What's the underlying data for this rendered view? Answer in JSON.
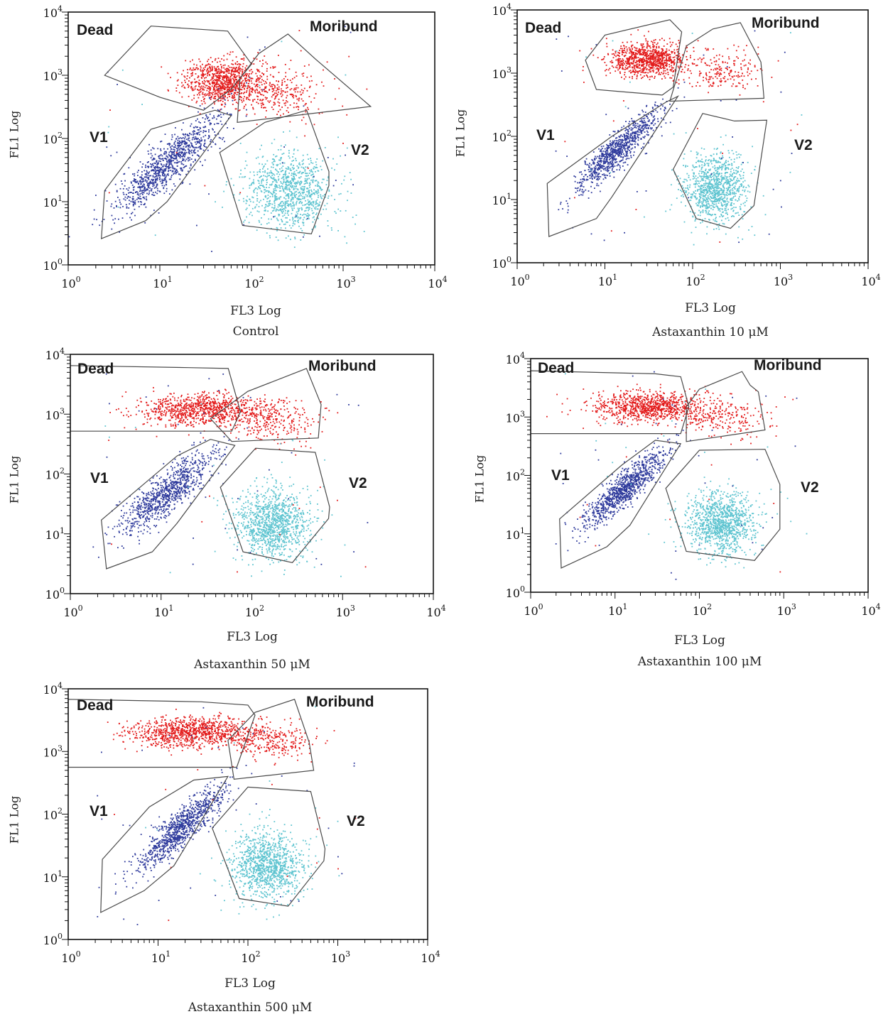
{
  "chart_data": [
    {
      "type": "scatter",
      "title": "Control",
      "xlabel": "FL3 Log",
      "ylabel": "FL1 Log",
      "x_scale": "log",
      "y_scale": "log",
      "xlim": [
        1,
        10000
      ],
      "ylim": [
        1,
        10000
      ],
      "x_ticks": [
        "10^0",
        "10^1",
        "10^2",
        "10^3",
        "10^4"
      ],
      "y_ticks": [
        "10^0",
        "10^1",
        "10^2",
        "10^3",
        "10^4"
      ],
      "gates": [
        {
          "name": "Dead",
          "polygon": [
            [
              2.5,
              1000
            ],
            [
              8,
              6000
            ],
            [
              55,
              5000
            ],
            [
              100,
              1500
            ],
            [
              60,
              600
            ],
            [
              30,
              280
            ],
            [
              10,
              450
            ]
          ]
        },
        {
          "name": "Moribund",
          "polygon": [
            [
              75,
              900
            ],
            [
              120,
              2200
            ],
            [
              250,
              4500
            ],
            [
              500,
              1800
            ],
            [
              2000,
              320
            ],
            [
              70,
              180
            ]
          ]
        },
        {
          "name": "V1",
          "polygon": [
            [
              2.5,
              15
            ],
            [
              8,
              140
            ],
            [
              40,
              280
            ],
            [
              60,
              230
            ],
            [
              12,
              10
            ],
            [
              7,
              5
            ],
            [
              2.3,
              2.6
            ]
          ]
        },
        {
          "name": "V2",
          "polygon": [
            [
              45,
              60
            ],
            [
              140,
              180
            ],
            [
              400,
              280
            ],
            [
              700,
              30
            ],
            [
              700,
              18
            ],
            [
              450,
              3.1
            ],
            [
              80,
              4.2
            ]
          ]
        }
      ],
      "series": [
        {
          "gate": "Dead",
          "color": "#e31b1b",
          "center": [
            50,
            800
          ],
          "spread": [
            0.22,
            0.17
          ],
          "count": 900
        },
        {
          "gate": "Moribund",
          "color": "#e31b1b",
          "center": [
            200,
            500
          ],
          "spread": [
            0.25,
            0.2
          ],
          "count": 260
        },
        {
          "gate": "V1",
          "color": "#2e3a9c",
          "center": [
            12,
            40
          ],
          "spread": [
            0.27,
            0.38
          ],
          "count": 1000
        },
        {
          "gate": "V2",
          "color": "#5ec4d0",
          "center": [
            250,
            15
          ],
          "spread": [
            0.23,
            0.3
          ],
          "count": 1000
        }
      ]
    },
    {
      "type": "scatter",
      "title": "Astaxanthin 10 μM",
      "xlabel": "FL3 Log",
      "ylabel": "FL1 Log",
      "x_scale": "log",
      "y_scale": "log",
      "xlim": [
        1,
        10000
      ],
      "ylim": [
        1,
        10000
      ],
      "x_ticks": [
        "10^0",
        "10^1",
        "10^2",
        "10^3",
        "10^4"
      ],
      "y_ticks": [
        "10^0",
        "10^1",
        "10^2",
        "10^3",
        "10^4"
      ],
      "gates": [
        {
          "name": "Dead",
          "polygon": [
            [
              6,
              1600
            ],
            [
              10,
              4000
            ],
            [
              55,
              7000
            ],
            [
              75,
              4500
            ],
            [
              60,
              600
            ],
            [
              45,
              450
            ],
            [
              8,
              550
            ]
          ]
        },
        {
          "name": "Moribund",
          "polygon": [
            [
              85,
              2700
            ],
            [
              170,
              5000
            ],
            [
              350,
              6300
            ],
            [
              600,
              1500
            ],
            [
              650,
              400
            ],
            [
              55,
              360
            ]
          ]
        },
        {
          "name": "V1",
          "polygon": [
            [
              2.2,
              18
            ],
            [
              12,
              100
            ],
            [
              50,
              350
            ],
            [
              68,
              430
            ],
            [
              12,
              11
            ],
            [
              8,
              5
            ],
            [
              2.3,
              2.6
            ]
          ]
        },
        {
          "name": "V2",
          "polygon": [
            [
              60,
              30
            ],
            [
              130,
              230
            ],
            [
              300,
              175
            ],
            [
              700,
              180
            ],
            [
              500,
              8
            ],
            [
              270,
              3.5
            ],
            [
              110,
              5
            ]
          ]
        }
      ],
      "series": [
        {
          "gate": "Dead",
          "color": "#e31b1b",
          "center": [
            30,
            1600
          ],
          "spread": [
            0.22,
            0.13
          ],
          "count": 900
        },
        {
          "gate": "Moribund",
          "color": "#e31b1b",
          "center": [
            220,
            1100
          ],
          "spread": [
            0.22,
            0.17
          ],
          "count": 200
        },
        {
          "gate": "V1",
          "color": "#2e3a9c",
          "center": [
            14,
            60
          ],
          "spread": [
            0.2,
            0.32
          ],
          "count": 900
        },
        {
          "gate": "V2",
          "color": "#5ec4d0",
          "center": [
            180,
            15
          ],
          "spread": [
            0.18,
            0.28
          ],
          "count": 1000
        }
      ]
    },
    {
      "type": "scatter",
      "title": "Astaxanthin 50 μM",
      "xlabel": "FL3 Log",
      "ylabel": "FL1 Log",
      "x_scale": "log",
      "y_scale": "log",
      "xlim": [
        1,
        10000
      ],
      "ylim": [
        1,
        10000
      ],
      "x_ticks": [
        "10^0",
        "10^1",
        "10^2",
        "10^3",
        "10^4"
      ],
      "y_ticks": [
        "10^0",
        "10^1",
        "10^2",
        "10^3",
        "10^4"
      ],
      "gates": [
        {
          "name": "Dead",
          "polygon": [
            [
              1,
              6500
            ],
            [
              20,
              6000
            ],
            [
              55,
              5800
            ],
            [
              75,
              1100
            ],
            [
              60,
              520
            ],
            [
              1,
              520
            ]
          ]
        },
        {
          "name": "Moribund",
          "polygon": [
            [
              35,
              840
            ],
            [
              90,
              2400
            ],
            [
              400,
              5800
            ],
            [
              580,
              1450
            ],
            [
              540,
              400
            ],
            [
              60,
              350
            ]
          ]
        },
        {
          "name": "V1",
          "polygon": [
            [
              2.2,
              17
            ],
            [
              15,
              200
            ],
            [
              35,
              380
            ],
            [
              65,
              300
            ],
            [
              15,
              15
            ],
            [
              8,
              5
            ],
            [
              2.5,
              2.6
            ]
          ]
        },
        {
          "name": "V2",
          "polygon": [
            [
              45,
              60
            ],
            [
              110,
              270
            ],
            [
              500,
              230
            ],
            [
              720,
              28
            ],
            [
              700,
              18
            ],
            [
              280,
              3.3
            ],
            [
              80,
              5
            ]
          ]
        }
      ],
      "series": [
        {
          "gate": "Dead",
          "color": "#e31b1b",
          "center": [
            30,
            1200
          ],
          "spread": [
            0.35,
            0.13
          ],
          "count": 900
        },
        {
          "gate": "Moribund",
          "color": "#e31b1b",
          "center": [
            180,
            700
          ],
          "spread": [
            0.25,
            0.18
          ],
          "count": 250
        },
        {
          "gate": "V1",
          "color": "#2e3a9c",
          "center": [
            12,
            50
          ],
          "spread": [
            0.26,
            0.34
          ],
          "count": 900
        },
        {
          "gate": "V2",
          "color": "#5ec4d0",
          "center": [
            170,
            15
          ],
          "spread": [
            0.2,
            0.28
          ],
          "count": 1100
        }
      ]
    },
    {
      "type": "scatter",
      "title": "Astaxanthin 100 μM",
      "xlabel": "FL3 Log",
      "ylabel": "FL1 Log",
      "x_scale": "log",
      "y_scale": "log",
      "xlim": [
        1,
        10000
      ],
      "ylim": [
        1,
        10000
      ],
      "x_ticks": [
        "10^0",
        "10^1",
        "10^2",
        "10^3",
        "10^4"
      ],
      "y_ticks": [
        "10^0",
        "10^1",
        "10^2",
        "10^3",
        "10^4"
      ],
      "gates": [
        {
          "name": "Dead",
          "polygon": [
            [
              1,
              6200
            ],
            [
              30,
              5500
            ],
            [
              60,
              4900
            ],
            [
              75,
              1500
            ],
            [
              60,
              520
            ],
            [
              1,
              520
            ]
          ]
        },
        {
          "name": "Moribund",
          "polygon": [
            [
              70,
              1500
            ],
            [
              100,
              3000
            ],
            [
              320,
              6000
            ],
            [
              400,
              3500
            ],
            [
              500,
              2700
            ],
            [
              600,
              600
            ],
            [
              70,
              380
            ]
          ]
        },
        {
          "name": "V1",
          "polygon": [
            [
              2.2,
              18
            ],
            [
              12,
              150
            ],
            [
              30,
              400
            ],
            [
              60,
              350
            ],
            [
              15,
              14
            ],
            [
              8,
              6
            ],
            [
              2.3,
              2.6
            ]
          ]
        },
        {
          "name": "V2",
          "polygon": [
            [
              40,
              60
            ],
            [
              100,
              270
            ],
            [
              600,
              280
            ],
            [
              900,
              70
            ],
            [
              900,
              12
            ],
            [
              450,
              3.5
            ],
            [
              70,
              5
            ]
          ]
        }
      ],
      "series": [
        {
          "gate": "Dead",
          "color": "#e31b1b",
          "center": [
            25,
            1500
          ],
          "spread": [
            0.35,
            0.13
          ],
          "count": 900
        },
        {
          "gate": "Moribund",
          "color": "#e31b1b",
          "center": [
            200,
            1000
          ],
          "spread": [
            0.25,
            0.17
          ],
          "count": 220
        },
        {
          "gate": "V1",
          "color": "#2e3a9c",
          "center": [
            13,
            60
          ],
          "spread": [
            0.22,
            0.32
          ],
          "count": 950
        },
        {
          "gate": "V2",
          "color": "#5ec4d0",
          "center": [
            180,
            15
          ],
          "spread": [
            0.2,
            0.26
          ],
          "count": 1100
        }
      ]
    },
    {
      "type": "scatter",
      "title": "Astaxanthin 500 μM",
      "xlabel": "FL3 Log",
      "ylabel": "FL1 Log",
      "x_scale": "log",
      "y_scale": "log",
      "xlim": [
        1,
        10000
      ],
      "ylim": [
        1,
        10000
      ],
      "x_ticks": [
        "10^0",
        "10^1",
        "10^2",
        "10^3",
        "10^4"
      ],
      "y_ticks": [
        "10^0",
        "10^1",
        "10^2",
        "10^3",
        "10^4"
      ],
      "gates": [
        {
          "name": "Dead",
          "polygon": [
            [
              1,
              6800
            ],
            [
              30,
              6200
            ],
            [
              100,
              5500
            ],
            [
              120,
              3800
            ],
            [
              75,
              560
            ],
            [
              1,
              560
            ]
          ]
        },
        {
          "name": "Moribund",
          "polygon": [
            [
              60,
              1500
            ],
            [
              120,
              4200
            ],
            [
              330,
              6800
            ],
            [
              480,
              1400
            ],
            [
              540,
              500
            ],
            [
              70,
              360
            ]
          ]
        },
        {
          "name": "V1",
          "polygon": [
            [
              2.4,
              19
            ],
            [
              8,
              130
            ],
            [
              25,
              350
            ],
            [
              60,
              400
            ],
            [
              15,
              15
            ],
            [
              7,
              6
            ],
            [
              2.3,
              2.7
            ]
          ]
        },
        {
          "name": "V2",
          "polygon": [
            [
              40,
              60
            ],
            [
              100,
              270
            ],
            [
              500,
              230
            ],
            [
              720,
              28
            ],
            [
              700,
              18
            ],
            [
              280,
              3.4
            ],
            [
              80,
              4.5
            ]
          ]
        }
      ],
      "series": [
        {
          "gate": "Dead",
          "color": "#e31b1b",
          "center": [
            25,
            2000
          ],
          "spread": [
            0.35,
            0.12
          ],
          "count": 1000
        },
        {
          "gate": "Moribund",
          "color": "#e31b1b",
          "center": [
            200,
            1400
          ],
          "spread": [
            0.22,
            0.15
          ],
          "count": 230
        },
        {
          "gate": "V1",
          "color": "#2e3a9c",
          "center": [
            18,
            60
          ],
          "spread": [
            0.22,
            0.33
          ],
          "count": 950
        },
        {
          "gate": "V2",
          "color": "#5ec4d0",
          "center": [
            170,
            15
          ],
          "spread": [
            0.2,
            0.26
          ],
          "count": 1100
        }
      ]
    }
  ]
}
